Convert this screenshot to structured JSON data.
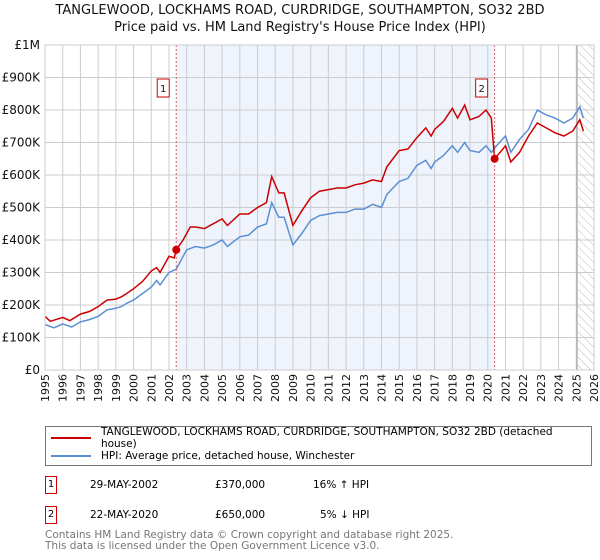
{
  "title": "TANGLEWOOD, LOCKHAMS ROAD, CURDRIDGE, SOUTHAMPTON, SO32 2BD",
  "subtitle": "Price paid vs. HM Land Registry's House Price Index (HPI)",
  "legend": {
    "property": "TANGLEWOOD, LOCKHAMS ROAD, CURDRIDGE, SOUTHAMPTON, SO32 2BD (detached house)",
    "hpi": "HPI: Average price, detached house, Winchester"
  },
  "transactions": [
    {
      "id": "1",
      "date": "29-MAY-2002",
      "price": "£370,000",
      "hpi_change": "16% ↑ HPI"
    },
    {
      "id": "2",
      "date": "22-MAY-2020",
      "price": "£650,000",
      "hpi_change": "5% ↓ HPI"
    }
  ],
  "footer": {
    "line1": "Contains HM Land Registry data © Crown copyright and database right 2025.",
    "line2": "This data is licensed under the Open Government Licence v3.0."
  },
  "colors": {
    "property": "#cc0000",
    "hpi": "#5b8fd4",
    "shade": "#eef3fc"
  },
  "chart_data": {
    "type": "line",
    "xlim": [
      1995,
      2026
    ],
    "ylim": [
      0,
      1000000
    ],
    "yticks": [
      0,
      100000,
      200000,
      300000,
      400000,
      500000,
      600000,
      700000,
      800000,
      900000,
      1000000
    ],
    "ytick_labels": [
      "£0",
      "£100K",
      "£200K",
      "£300K",
      "£400K",
      "£500K",
      "£600K",
      "£700K",
      "£800K",
      "£900K",
      "£1M"
    ],
    "xtick_labels": [
      "1995",
      "1996",
      "1997",
      "1998",
      "1999",
      "2000",
      "2001",
      "2002",
      "2003",
      "2004",
      "2005",
      "2006",
      "2007",
      "2008",
      "2009",
      "2010",
      "2011",
      "2012",
      "2013",
      "2014",
      "2015",
      "2016",
      "2017",
      "2018",
      "2019",
      "2020",
      "2021",
      "2022",
      "2023",
      "2024",
      "2025",
      "2026"
    ],
    "grid": true,
    "shaded_range": [
      2002.41,
      2020.39
    ],
    "forecast_from": 2025.1,
    "sales": [
      {
        "label": "1",
        "x": 2002.41,
        "y": 370000
      },
      {
        "label": "2",
        "x": 2020.39,
        "y": 650000
      }
    ],
    "series": [
      {
        "name": "TANGLEWOOD, LOCKHAMS ROAD, CURDRIDGE, SOUTHAMPTON, SO32 2BD (detached house)",
        "x": [
          1995,
          1995.3,
          1996,
          1996.4,
          1997,
          1997.5,
          1998,
          1998.5,
          1999,
          1999.3,
          1999.6,
          2000,
          2000.5,
          2001,
          2001.3,
          2001.5,
          2002,
          2002.3,
          2002.41,
          2002.8,
          2003.2,
          2003.5,
          2004,
          2004.5,
          2005,
          2005.3,
          2006,
          2006.5,
          2007,
          2007.5,
          2007.8,
          2008.2,
          2008.5,
          2009,
          2009.5,
          2010,
          2010.5,
          2011,
          2011.5,
          2012,
          2012.5,
          2013,
          2013.5,
          2014,
          2014.3,
          2015,
          2015.5,
          2016,
          2016.5,
          2016.8,
          2017,
          2017.5,
          2018,
          2018.3,
          2018.7,
          2019,
          2019.5,
          2019.9,
          2020.2,
          2020.39,
          2020.7,
          2021,
          2021.3,
          2021.8,
          2022.3,
          2022.8,
          2023.3,
          2023.8,
          2024.3,
          2024.8,
          2025.2,
          2025.4
        ],
        "y": [
          165000,
          150000,
          162000,
          152000,
          172000,
          180000,
          195000,
          215000,
          218000,
          225000,
          235000,
          250000,
          272000,
          305000,
          315000,
          300000,
          350000,
          345000,
          370000,
          400000,
          440000,
          440000,
          435000,
          450000,
          465000,
          445000,
          480000,
          480000,
          500000,
          515000,
          595000,
          545000,
          545000,
          445000,
          490000,
          530000,
          550000,
          555000,
          560000,
          560000,
          570000,
          575000,
          585000,
          580000,
          625000,
          675000,
          680000,
          715000,
          745000,
          720000,
          740000,
          765000,
          805000,
          775000,
          815000,
          770000,
          780000,
          800000,
          775000,
          650000,
          670000,
          690000,
          640000,
          670000,
          720000,
          760000,
          745000,
          730000,
          720000,
          735000,
          770000,
          735000
        ]
      },
      {
        "name": "HPI: Average price, detached house, Winchester",
        "x": [
          1995,
          1995.5,
          1996,
          1996.5,
          1997,
          1997.5,
          1998,
          1998.5,
          1999,
          1999.3,
          1999.6,
          2000,
          2000.5,
          2001,
          2001.3,
          2001.5,
          2002,
          2002.4,
          2003,
          2003.5,
          2004,
          2004.5,
          2005,
          2005.3,
          2006,
          2006.5,
          2007,
          2007.5,
          2007.8,
          2008.2,
          2008.5,
          2009,
          2009.5,
          2010,
          2010.5,
          2011,
          2011.5,
          2012,
          2012.5,
          2013,
          2013.5,
          2014,
          2014.3,
          2015,
          2015.5,
          2016,
          2016.5,
          2016.8,
          2017,
          2017.5,
          2018,
          2018.3,
          2018.7,
          2019,
          2019.5,
          2019.9,
          2020.2,
          2020.5,
          2021,
          2021.3,
          2021.8,
          2022.3,
          2022.8,
          2023.3,
          2023.8,
          2024.3,
          2024.8,
          2025.2,
          2025.4
        ],
        "y": [
          140000,
          130000,
          142000,
          132000,
          148000,
          155000,
          165000,
          185000,
          190000,
          195000,
          205000,
          215000,
          235000,
          255000,
          275000,
          262000,
          300000,
          310000,
          370000,
          380000,
          375000,
          385000,
          400000,
          380000,
          410000,
          415000,
          440000,
          450000,
          515000,
          470000,
          470000,
          385000,
          420000,
          460000,
          475000,
          480000,
          485000,
          485000,
          495000,
          495000,
          510000,
          500000,
          540000,
          580000,
          590000,
          630000,
          645000,
          620000,
          640000,
          660000,
          690000,
          670000,
          700000,
          675000,
          670000,
          690000,
          670000,
          690000,
          720000,
          670000,
          710000,
          740000,
          800000,
          785000,
          775000,
          760000,
          775000,
          810000,
          775000
        ]
      }
    ]
  }
}
